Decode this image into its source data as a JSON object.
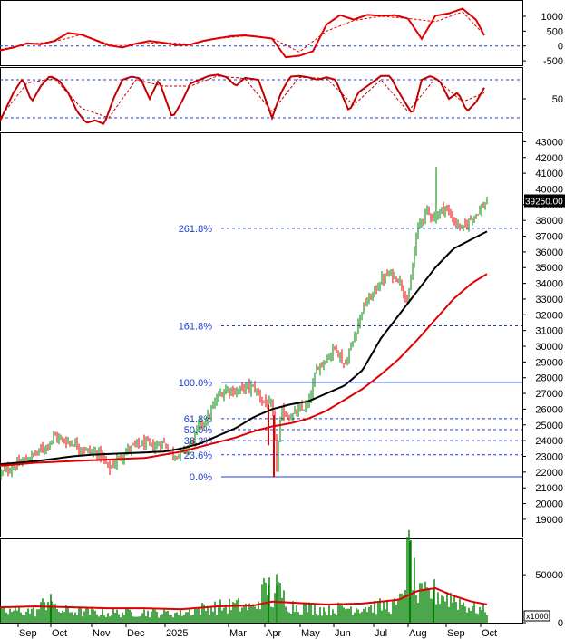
{
  "chart_data": [
    {
      "type": "line",
      "panel": "macd",
      "y_ticks": [
        "1000",
        "500",
        "0",
        "-500"
      ],
      "y_tick_values": [
        1000,
        500,
        0,
        -500
      ],
      "ylim": [
        -650,
        1550
      ],
      "reference_line": 0,
      "series": [
        {
          "color": "#e00000",
          "x": [
            0,
            15,
            30,
            45,
            60,
            75,
            90,
            105,
            120,
            135,
            150,
            165,
            180,
            195,
            210,
            225,
            240,
            255,
            270,
            285,
            300,
            315,
            330,
            345,
            360,
            375,
            390,
            405,
            420,
            435,
            450,
            465,
            480,
            495,
            510,
            525,
            535
          ],
          "values": [
            -150,
            -50,
            90,
            60,
            170,
            440,
            380,
            200,
            20,
            -50,
            80,
            170,
            110,
            30,
            50,
            180,
            260,
            330,
            360,
            310,
            250,
            -380,
            -330,
            -180,
            720,
            1040,
            890,
            1050,
            1020,
            1040,
            920,
            240,
            1020,
            1100,
            1260,
            880,
            300
          ]
        },
        {
          "color": "#e00000",
          "dashed": true,
          "x": [
            0,
            30,
            60,
            90,
            120,
            150,
            180,
            210,
            240,
            270,
            300,
            330,
            360,
            390,
            420,
            450,
            480,
            510,
            535
          ],
          "values": [
            -120,
            60,
            150,
            380,
            60,
            60,
            120,
            60,
            250,
            340,
            260,
            -200,
            500,
            860,
            1000,
            930,
            820,
            1150,
            340
          ]
        }
      ]
    },
    {
      "type": "line",
      "panel": "oscillator",
      "y_ticks": [
        "50"
      ],
      "y_tick_values": [
        50
      ],
      "ylim": [
        0,
        100
      ],
      "reference_lines": [
        80,
        20
      ],
      "series": [
        {
          "color": "#c00000",
          "x": [
            0,
            15,
            25,
            35,
            45,
            55,
            65,
            75,
            85,
            95,
            105,
            115,
            125,
            135,
            145,
            155,
            165,
            175,
            190,
            200,
            210,
            220,
            230,
            240,
            250,
            260,
            270,
            285,
            300,
            310,
            320,
            330,
            340,
            350,
            360,
            370,
            385,
            395,
            405,
            420,
            430,
            440,
            455,
            465,
            475,
            485,
            495,
            505,
            515,
            525,
            535
          ],
          "values": [
            15,
            60,
            82,
            45,
            70,
            86,
            79,
            60,
            30,
            12,
            16,
            10,
            50,
            80,
            85,
            82,
            50,
            80,
            20,
            44,
            74,
            80,
            86,
            88,
            84,
            70,
            83,
            80,
            20,
            60,
            85,
            86,
            84,
            80,
            84,
            80,
            30,
            60,
            70,
            86,
            86,
            60,
            25,
            80,
            86,
            78,
            50,
            60,
            30,
            45,
            70
          ]
        },
        {
          "color": "#c00000",
          "dashed": true,
          "x": [
            0,
            30,
            60,
            90,
            120,
            150,
            180,
            210,
            240,
            270,
            300,
            330,
            360,
            390,
            420,
            450,
            480,
            510,
            535
          ],
          "values": [
            20,
            75,
            82,
            35,
            20,
            80,
            70,
            70,
            86,
            82,
            30,
            84,
            82,
            40,
            80,
            30,
            82,
            45,
            60
          ]
        }
      ]
    },
    {
      "type": "candlestick",
      "panel": "price",
      "y_ticks": [
        "43000",
        "42000",
        "41000",
        "40000",
        "39000",
        "38000",
        "37000",
        "36000",
        "35000",
        "34000",
        "33000",
        "32000",
        "31000",
        "30000",
        "29000",
        "28000",
        "27000",
        "26000",
        "25000",
        "24000",
        "23000",
        "22000",
        "21000",
        "20000",
        "19000"
      ],
      "y_tick_values": [
        43000,
        42000,
        41000,
        40000,
        39000,
        38000,
        37000,
        36000,
        35000,
        34000,
        33000,
        32000,
        31000,
        30000,
        29000,
        28000,
        27000,
        26000,
        25000,
        24000,
        23000,
        22000,
        21000,
        20000,
        19000
      ],
      "ylim": [
        17900,
        43600
      ],
      "last_price": "39250.00",
      "last_price_value": 39250,
      "fibonacci": [
        {
          "label": "261.8%",
          "value": 37500
        },
        {
          "label": "161.8%",
          "value": 31300
        },
        {
          "label": "100.0%",
          "value": 27700
        },
        {
          "label": "61.8%",
          "value": 25400
        },
        {
          "label": "50.0%",
          "value": 24700
        },
        {
          "label": "38.2%",
          "value": 24000
        },
        {
          "label": "23.6%",
          "value": 23100
        },
        {
          "label": "0.0%",
          "value": 21700
        }
      ],
      "anchors": {
        "x": [
          0,
          20,
          35,
          50,
          60,
          70,
          80,
          90,
          100,
          110,
          120,
          130,
          140,
          150,
          160,
          170,
          180,
          190,
          200,
          210,
          220,
          230,
          240,
          250,
          260,
          270,
          280,
          290,
          300,
          305,
          310,
          320,
          330,
          340,
          350,
          360,
          370,
          380,
          390,
          400,
          410,
          420,
          430,
          440,
          450,
          460,
          470,
          480,
          490,
          500,
          510,
          520,
          530,
          537
        ],
        "close": [
          21900,
          22500,
          23000,
          23600,
          24300,
          24000,
          23900,
          23500,
          23300,
          23200,
          22200,
          22800,
          23400,
          23700,
          23800,
          23600,
          23900,
          23100,
          23200,
          23700,
          25000,
          25500,
          26800,
          27300,
          27100,
          27400,
          27400,
          26500,
          26200,
          22500,
          25800,
          25500,
          25900,
          26300,
          28700,
          29200,
          30000,
          28700,
          30500,
          32500,
          33200,
          34200,
          34600,
          34300,
          32800,
          37400,
          38600,
          38200,
          38900,
          38000,
          37400,
          38200,
          38700,
          39250
        ]
      },
      "ma": [
        {
          "color": "#000000",
          "x": [
            0,
            40,
            80,
            100,
            140,
            180,
            200,
            220,
            240,
            260,
            280,
            300,
            320,
            340,
            360,
            380,
            400,
            420,
            440,
            460,
            480,
            500,
            520,
            537
          ],
          "values": [
            22500,
            22700,
            23000,
            23100,
            23200,
            23300,
            23500,
            23800,
            24300,
            24800,
            25500,
            26000,
            26300,
            26500,
            27000,
            27500,
            28500,
            30500,
            32000,
            33500,
            35000,
            36200,
            36800,
            37300
          ]
        },
        {
          "color": "#e00000",
          "x": [
            0,
            40,
            80,
            120,
            160,
            200,
            220,
            240,
            260,
            280,
            300,
            320,
            340,
            360,
            380,
            400,
            420,
            440,
            460,
            480,
            500,
            520,
            537
          ],
          "values": [
            22400,
            22600,
            22700,
            22800,
            22900,
            23300,
            23600,
            23900,
            24200,
            24600,
            24900,
            25100,
            25400,
            25900,
            26600,
            27300,
            28200,
            29200,
            30400,
            31700,
            33000,
            34000,
            34600
          ]
        }
      ]
    },
    {
      "type": "bar",
      "panel": "volume",
      "y_ticks": [
        "50000",
        "0"
      ],
      "y_tick_values": [
        50000,
        0
      ],
      "ylim": [
        0,
        88000
      ],
      "unit_label": "x1000",
      "x_ticks": [
        "Sep",
        "Oct",
        "Nov",
        "Dec",
        "2025",
        "Mar",
        "Apr",
        "May",
        "Jun",
        "Jul",
        "Aug",
        "Sep",
        "Oct"
      ],
      "x_tick_positions": [
        22,
        58,
        103,
        141,
        184,
        254,
        294,
        333,
        370,
        414,
        452,
        494,
        532
      ],
      "anchors": {
        "x": [
          0,
          20,
          40,
          56,
          60,
          80,
          100,
          120,
          140,
          160,
          180,
          200,
          220,
          240,
          260,
          280,
          296,
          300,
          305,
          320,
          340,
          360,
          380,
          400,
          420,
          440,
          452,
          460,
          480,
          500,
          520,
          537
        ],
        "values": [
          12000,
          14000,
          13000,
          30000,
          15000,
          13000,
          12000,
          11000,
          12000,
          12000,
          11000,
          11000,
          16000,
          18000,
          20000,
          17000,
          45000,
          22000,
          40000,
          20000,
          17000,
          15000,
          17000,
          18000,
          19000,
          20000,
          85000,
          30000,
          35000,
          28000,
          17000,
          14000
        ]
      },
      "ma": {
        "color": "#e00000",
        "x": [
          0,
          40,
          80,
          120,
          160,
          200,
          240,
          280,
          300,
          320,
          360,
          400,
          440,
          460,
          480,
          500,
          520,
          537
        ],
        "values": [
          16000,
          17000,
          16000,
          15000,
          15000,
          14000,
          17000,
          18000,
          22000,
          21000,
          19000,
          20000,
          24000,
          33000,
          36000,
          28000,
          22000,
          19000
        ]
      }
    }
  ]
}
